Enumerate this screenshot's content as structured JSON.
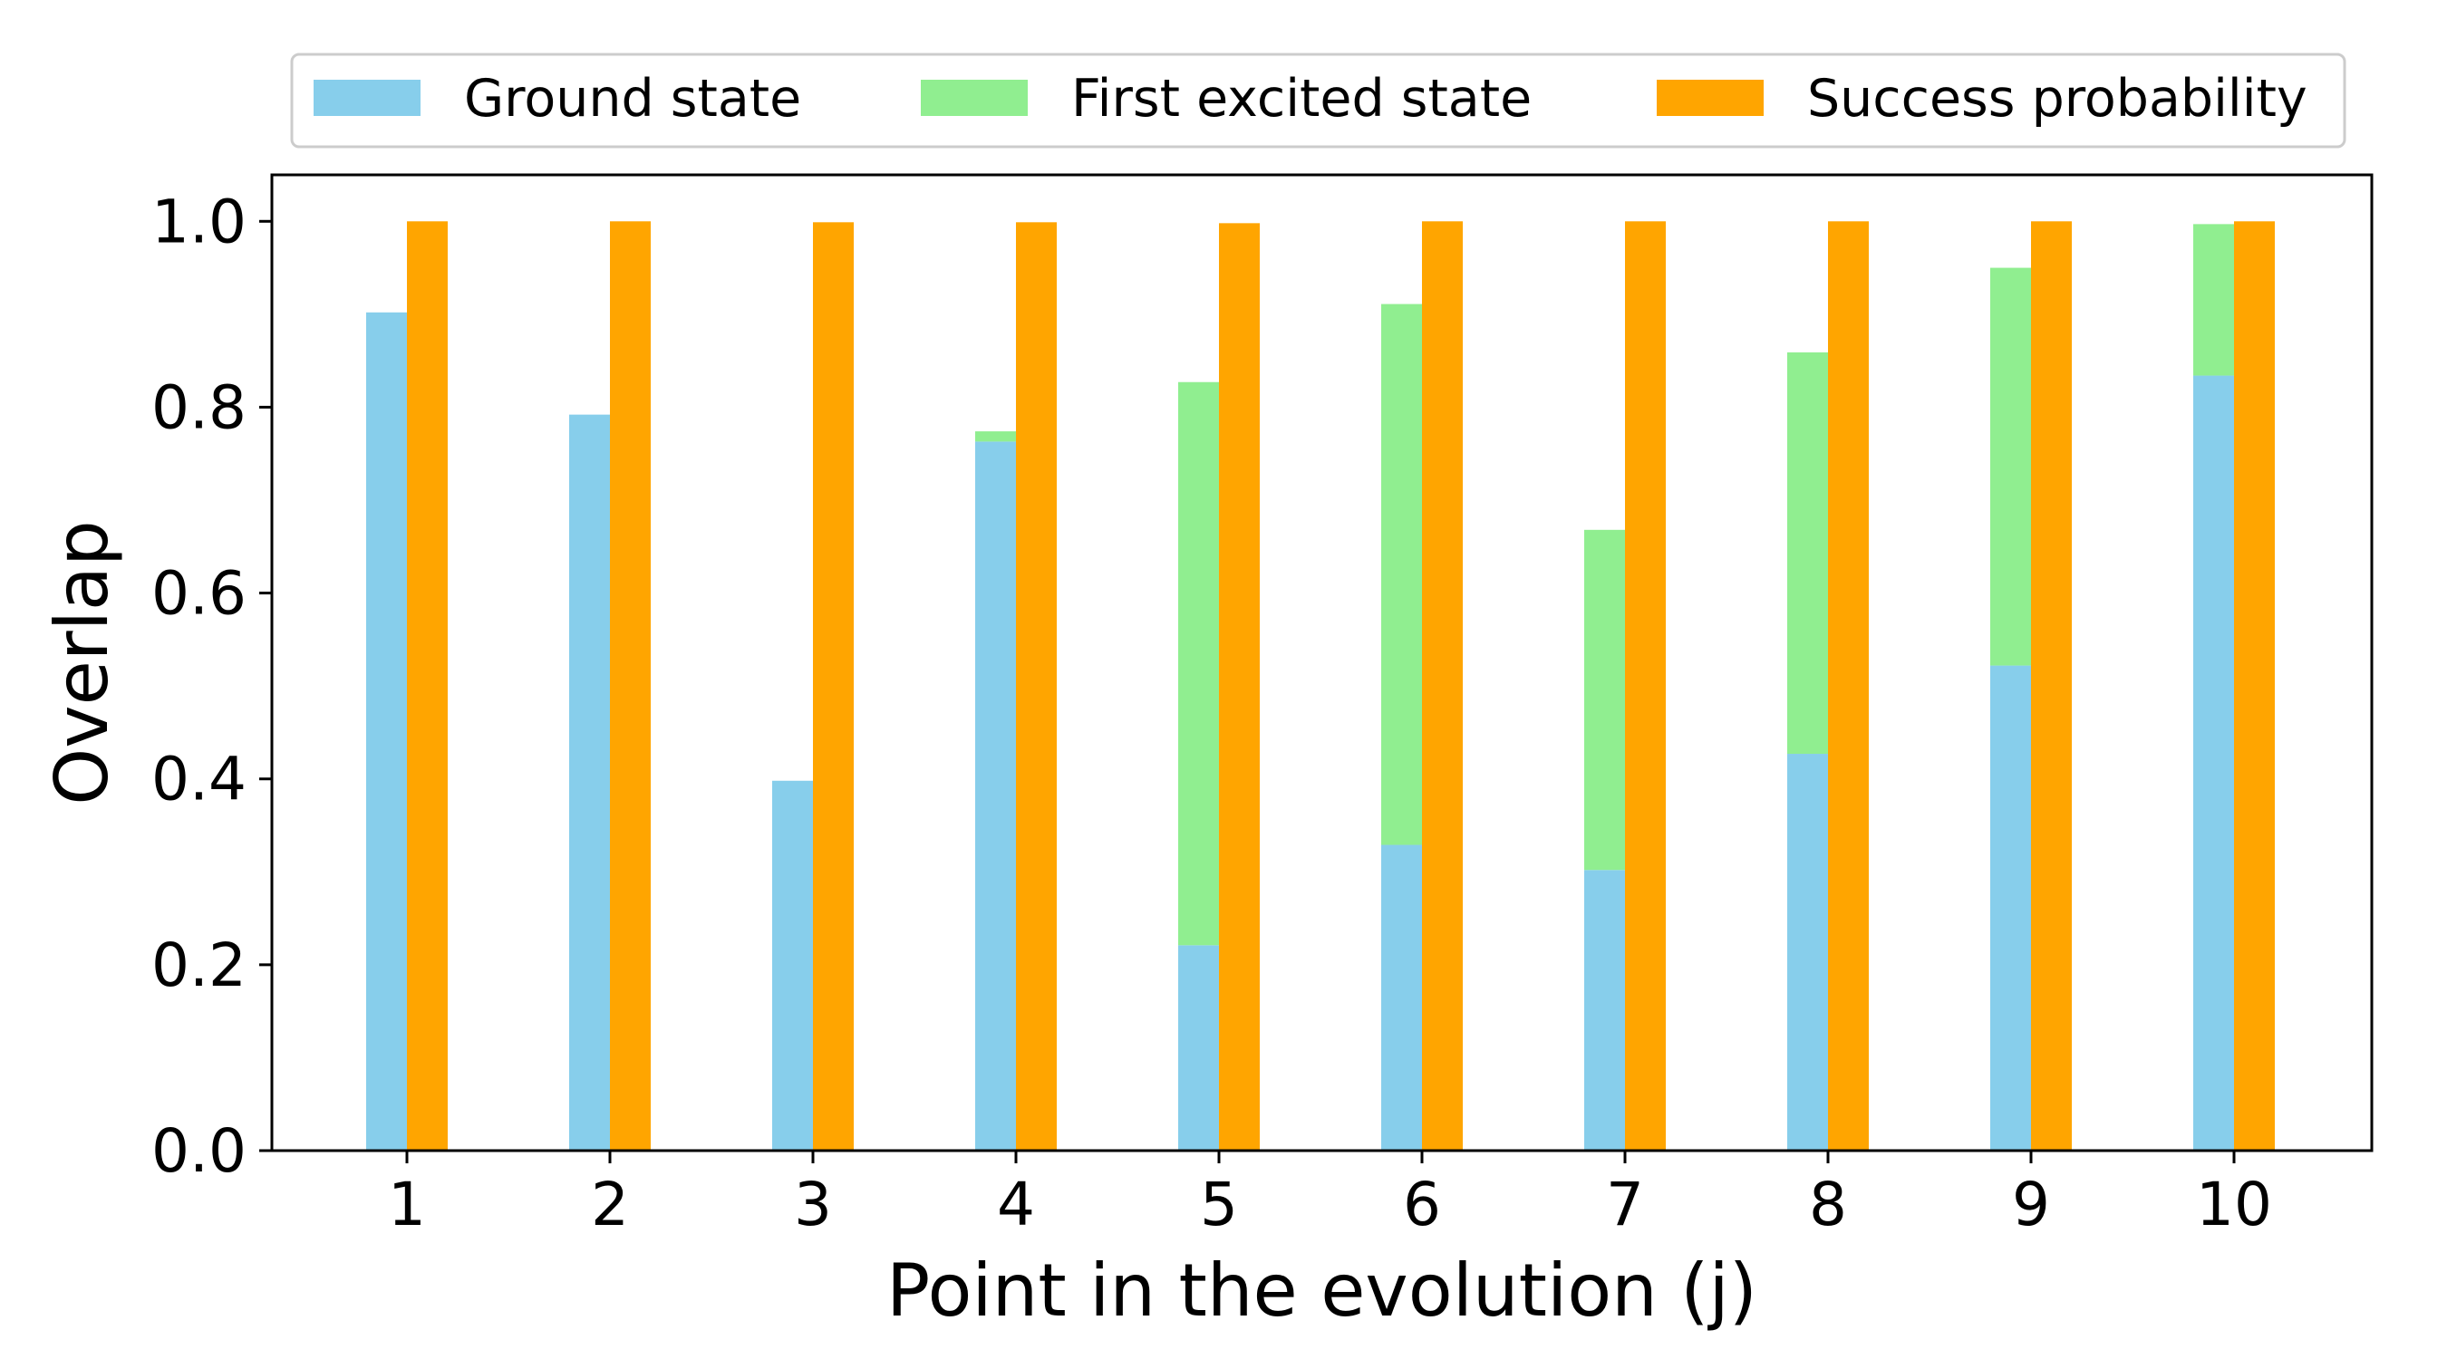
{
  "chart_data": {
    "type": "bar",
    "title": "",
    "xlabel": "Point in the evolution (j)",
    "ylabel": "Overlap",
    "categories": [
      "1",
      "2",
      "3",
      "4",
      "5",
      "6",
      "7",
      "8",
      "9",
      "10"
    ],
    "ylim": [
      0,
      1.05
    ],
    "yticks": [
      "0.0",
      "0.2",
      "0.4",
      "0.6",
      "0.8",
      "1.0"
    ],
    "grid": false,
    "legend_position": "top",
    "series": [
      {
        "name": "Ground state",
        "color": "#87CEEB",
        "values": [
          0.902,
          0.792,
          0.398,
          0.763,
          0.221,
          0.329,
          0.302,
          0.427,
          0.522,
          0.834
        ],
        "group": "left"
      },
      {
        "name": "First excited state",
        "color": "#90EE90",
        "values": [
          0.0,
          0.0,
          0.0,
          0.011,
          0.606,
          0.582,
          0.366,
          0.432,
          0.428,
          0.163
        ],
        "group": "left",
        "stacked_on": "Ground state"
      },
      {
        "name": "Success probability",
        "color": "#FFA500",
        "values": [
          1.0,
          1.0,
          0.999,
          0.999,
          0.998,
          1.0,
          1.0,
          1.0,
          1.0,
          1.0
        ],
        "group": "right"
      }
    ]
  }
}
